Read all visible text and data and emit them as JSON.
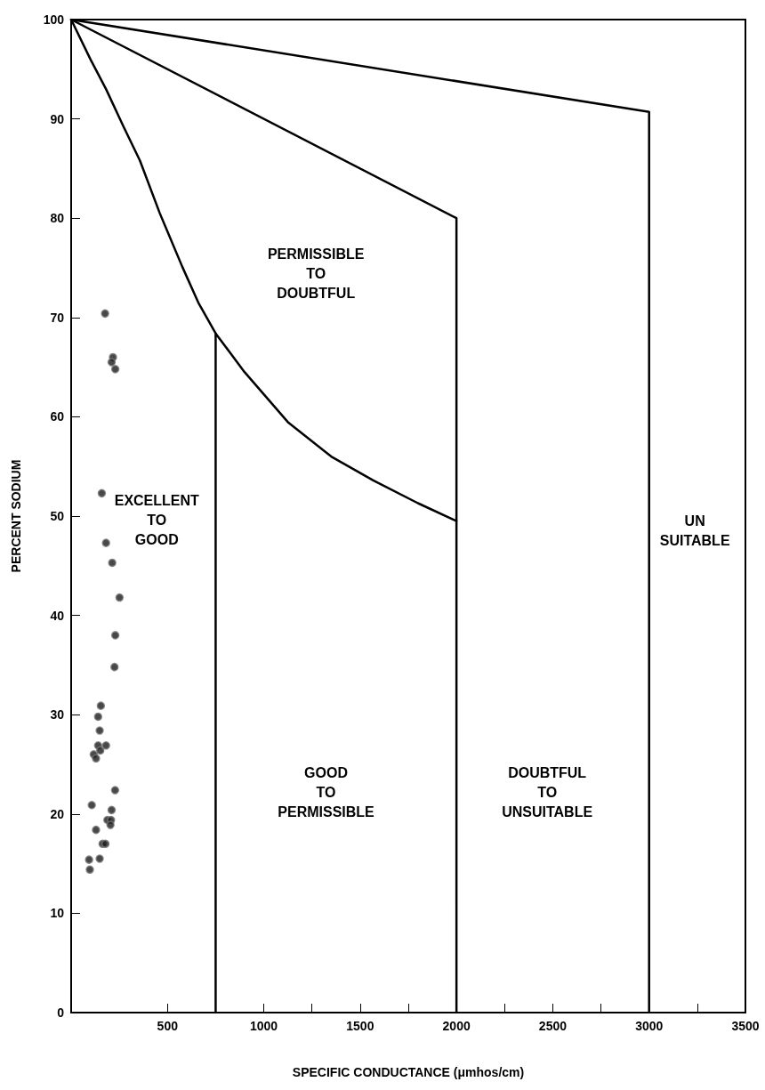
{
  "chart_data": {
    "type": "scatter",
    "xlabel": "SPECIFIC CONDUCTANCE (μmhos/cm)",
    "ylabel": "PERCENT SODIUM",
    "xlim": [
      0,
      3500
    ],
    "xticks": [
      500,
      {
        "value": 750,
        "label": null
      },
      1000,
      {
        "value": 1250,
        "label": null
      },
      1500,
      {
        "value": 1750,
        "label": null
      },
      2000,
      {
        "value": 2250,
        "label": null
      },
      2500,
      {
        "value": 2750,
        "label": null
      },
      3000,
      {
        "value": 3250,
        "label": null
      },
      3500
    ],
    "ylim": [
      0,
      100
    ],
    "yticks": [
      0,
      10,
      20,
      30,
      40,
      50,
      60,
      70,
      80,
      90,
      100
    ],
    "grid": false,
    "marker": "circle",
    "series": [
      {
        "color": "#1a1a1a",
        "x": [
          176,
          217,
          210,
          229,
          159,
          181,
          213,
          251,
          229,
          225,
          154,
          140,
          148,
          140,
          181,
          151,
          117,
          129,
          228,
          107,
          210,
          188,
          207,
          204,
          129,
          163,
          178,
          93,
          148,
          97
        ],
        "values": [
          70.4,
          66.0,
          65.5,
          64.8,
          52.3,
          47.3,
          45.3,
          41.8,
          38.0,
          34.8,
          30.9,
          29.8,
          28.4,
          26.9,
          26.9,
          26.4,
          26.0,
          25.6,
          22.4,
          20.9,
          20.4,
          19.4,
          19.4,
          18.9,
          18.4,
          17.0,
          17.0,
          15.4,
          15.5,
          14.4
        ]
      },
      {
        "type": "line",
        "color": "#000000",
        "marker": "none",
        "line_style": "solid",
        "x": [
          0,
          100,
          181,
          270,
          357,
          460,
          577,
          660,
          750
        ],
        "values": [
          100,
          96.0,
          93.0,
          89.3,
          85.8,
          80.5,
          75.1,
          71.5,
          68.4
        ]
      },
      {
        "type": "line",
        "color": "#000000",
        "marker": "none",
        "line_style": "solid",
        "x": [
          750,
          750,
          900,
          1128,
          1350,
          1568,
          1800,
          2000
        ],
        "values": [
          0,
          68.4,
          64.5,
          59.4,
          56.0,
          53.6,
          51.3,
          49.5
        ]
      },
      {
        "type": "line",
        "color": "#000000",
        "marker": "none",
        "line_style": "solid",
        "x": [
          0,
          2000,
          2000
        ],
        "values": [
          100,
          80.0,
          0
        ]
      },
      {
        "type": "line",
        "color": "#000000",
        "marker": "none",
        "line_style": "solid",
        "x": [
          0,
          3000,
          3000
        ],
        "values": [
          100,
          90.7,
          0
        ]
      }
    ],
    "annotations": [
      "EXCELLENT\nTO\nGOOD",
      "PERMISSIBLE\nTO\nDOUBTFUL",
      "GOOD\nTO\nPERMISSIBLE",
      "DOUBTFUL\nTO\nUNSUITABLE",
      "UN\nSUITABLE"
    ]
  }
}
